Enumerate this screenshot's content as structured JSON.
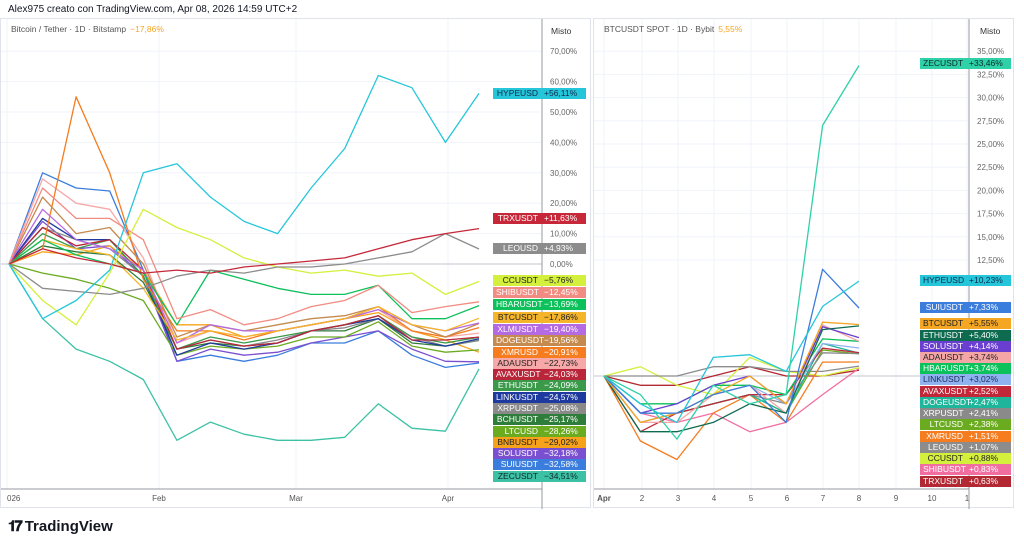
{
  "header": {
    "text": "Alex975 creato con TradingView.com, Apr 08, 2026 14:59 UTC+2"
  },
  "footer": {
    "logo": "TradingView"
  },
  "left": {
    "legend": {
      "symbol": "Bitcoin / Tether · 1D · Bitstamp",
      "change": "−17,86%",
      "change_color": "#f5a623"
    },
    "scale_label": "Misto",
    "y_ticks": [
      "70,00%",
      "60,00%",
      "50,00%",
      "40,00%",
      "30,00%",
      "20,00%",
      "10,00%",
      "0,00%"
    ],
    "x_ticks": [
      "026",
      "Feb",
      "Mar",
      "Apr"
    ]
  },
  "right": {
    "legend": {
      "symbol": "BTCUSDT SPOT · 1D · Bybit",
      "change": "5,55%",
      "change_color": "#f5a623"
    },
    "scale_label": "Misto",
    "y_ticks": [
      "35,00%",
      "32,50%",
      "30,00%",
      "27,50%",
      "25,00%",
      "22,50%",
      "20,00%",
      "17,50%",
      "15,00%",
      "12,50%"
    ],
    "x_ticks": [
      "Apr",
      "2",
      "3",
      "4",
      "5",
      "6",
      "7",
      "8",
      "9",
      "10",
      "1"
    ]
  },
  "chart_data": [
    {
      "type": "line",
      "title": "Bitcoin / Tether · 1D · Bitstamp",
      "ylabel": "Misto",
      "ylim": [
        -65,
        75
      ],
      "grid": true,
      "x": [
        "2026-01-01",
        "2026-01-08",
        "2026-01-15",
        "2026-01-22",
        "2026-01-29",
        "2026-02-05",
        "2026-02-12",
        "2026-02-19",
        "2026-02-26",
        "2026-03-05",
        "2026-03-12",
        "2026-03-19",
        "2026-03-26",
        "2026-04-02",
        "2026-04-08"
      ],
      "series": [
        {
          "name": "HYPEUSD",
          "label": "+56,11%",
          "color": "#26c6da",
          "text": "#0d2a4a",
          "values": [
            0,
            -18,
            -12,
            -2,
            30,
            33,
            22,
            14,
            10,
            25,
            38,
            62,
            58,
            40,
            56.11
          ]
        },
        {
          "name": "TRXUSDT",
          "label": "+11,63%",
          "color": "#c62839",
          "text": "#fff",
          "values": [
            0,
            5,
            2,
            0,
            -3,
            -2,
            -3,
            -1,
            0,
            1,
            2,
            5,
            8,
            10,
            11.63
          ]
        },
        {
          "name": "LEOUSD",
          "label": "+4,93%",
          "color": "#8c8c8c",
          "text": "#fff",
          "values": [
            0,
            -8,
            -9,
            -10,
            -8,
            -4,
            -2,
            -3,
            -1,
            -1,
            0,
            2,
            4,
            10,
            4.93
          ]
        },
        {
          "name": "CCUSDT",
          "label": "−5,76%",
          "color": "#d4f03c",
          "text": "#222",
          "values": [
            0,
            -12,
            -20,
            -3,
            18,
            12,
            8,
            2,
            -1,
            -3,
            -2,
            -4,
            -3,
            -10,
            -5.76
          ]
        },
        {
          "name": "SHIBUSDT",
          "label": "−12,45%",
          "color": "#f28b82",
          "text": "#fff",
          "values": [
            0,
            25,
            15,
            15,
            8,
            -18,
            -15,
            -20,
            -18,
            -14,
            -12,
            -7,
            -16,
            -14,
            -12.45
          ]
        },
        {
          "name": "HBARUSDT",
          "label": "−13,69%",
          "color": "#0cc05a",
          "text": "#fff",
          "values": [
            0,
            8,
            3,
            0,
            -3,
            -20,
            -2,
            -5,
            -8,
            -10,
            -10,
            -7,
            -18,
            -18,
            -13.69
          ]
        },
        {
          "name": "BTCUSDT",
          "label": "−17,86%",
          "color": "#f5b52a",
          "text": "#222",
          "values": [
            0,
            8,
            5,
            3,
            -8,
            -25,
            -22,
            -24,
            -22,
            -20,
            -18,
            -14,
            -20,
            -22,
            -17.86
          ]
        },
        {
          "name": "XLMUSDT",
          "label": "−19,40%",
          "color": "#b36ae2",
          "text": "#fff",
          "values": [
            0,
            18,
            8,
            5,
            -2,
            -26,
            -20,
            -22,
            -22,
            -20,
            -18,
            -15,
            -20,
            -22,
            -19.4
          ]
        },
        {
          "name": "DOGEUSDT",
          "label": "−19,56%",
          "color": "#c48a4e",
          "text": "#fff",
          "values": [
            0,
            22,
            10,
            12,
            0,
            -24,
            -20,
            -22,
            -20,
            -18,
            -17,
            -14,
            -20,
            -24,
            -19.56
          ]
        },
        {
          "name": "XMRUSD",
          "label": "−20,91%",
          "color": "#f57c1f",
          "text": "#fff",
          "values": [
            0,
            5,
            55,
            30,
            -5,
            -22,
            -22,
            -25,
            -22,
            -20,
            -18,
            -14,
            -22,
            -24,
            -20.91
          ]
        },
        {
          "name": "ADAUSDT",
          "label": "−22,73%",
          "color": "#f7a8a8",
          "text": "#222",
          "values": [
            0,
            28,
            20,
            18,
            2,
            -26,
            -22,
            -24,
            -22,
            -20,
            -18,
            -15,
            -22,
            -24,
            -22.73
          ]
        },
        {
          "name": "AVAXUSDT",
          "label": "−24,03%",
          "color": "#b9263a",
          "text": "#fff",
          "values": [
            0,
            12,
            6,
            8,
            -2,
            -28,
            -25,
            -27,
            -26,
            -22,
            -20,
            -17,
            -25,
            -25,
            -24.03
          ]
        },
        {
          "name": "ETHUSDT",
          "label": "−24,09%",
          "color": "#3a9a4a",
          "text": "#fff",
          "values": [
            0,
            10,
            5,
            8,
            -4,
            -28,
            -24,
            -26,
            -24,
            -22,
            -20,
            -17,
            -24,
            -26,
            -24.09
          ]
        },
        {
          "name": "LINKUSDT",
          "label": "−24,57%",
          "color": "#1e3a9e",
          "text": "#fff",
          "values": [
            0,
            15,
            8,
            8,
            -4,
            -30,
            -26,
            -28,
            -26,
            -22,
            -20,
            -18,
            -25,
            -27,
            -24.57
          ]
        },
        {
          "name": "XRPUSDT",
          "label": "−25,08%",
          "color": "#8a8a8a",
          "text": "#fff",
          "values": [
            0,
            12,
            8,
            5,
            -4,
            -28,
            -25,
            -27,
            -25,
            -22,
            -21,
            -18,
            -24,
            -27,
            -25.08
          ]
        },
        {
          "name": "BCHUSDT",
          "label": "−25,17%",
          "color": "#2f7d3a",
          "text": "#fff",
          "values": [
            0,
            6,
            4,
            3,
            -6,
            -28,
            -26,
            -27,
            -26,
            -22,
            -22,
            -18,
            -26,
            -27,
            -25.17
          ]
        },
        {
          "name": "LTCUSD",
          "label": "−28,26%",
          "color": "#6bab1f",
          "text": "#fff",
          "values": [
            0,
            -3,
            -5,
            -8,
            -12,
            -30,
            -27,
            -28,
            -27,
            -24,
            -24,
            -19,
            -27,
            -29,
            -28.26
          ]
        },
        {
          "name": "BNBUSDT",
          "label": "−29,02%",
          "color": "#f7a21b",
          "text": "#222",
          "values": [
            0,
            4,
            3,
            6,
            -2,
            -20,
            -20,
            -24,
            -22,
            -20,
            -18,
            -16,
            -22,
            -25,
            -29.02
          ]
        },
        {
          "name": "SOLUSDT",
          "label": "−32,18%",
          "color": "#7a4fd0",
          "text": "#fff",
          "values": [
            0,
            14,
            5,
            6,
            -4,
            -32,
            -28,
            -30,
            -29,
            -26,
            -24,
            -22,
            -28,
            -32,
            -32.18
          ]
        },
        {
          "name": "SUIUSDT",
          "label": "−32,58%",
          "color": "#3b7ddd",
          "text": "#fff",
          "values": [
            0,
            30,
            25,
            24,
            -2,
            -32,
            -30,
            -32,
            -30,
            -26,
            -26,
            -22,
            -30,
            -34,
            -32.58
          ]
        },
        {
          "name": "ZECUSDT",
          "label": "−34,51%",
          "color": "#3cc1a4",
          "text": "#0d2a2a",
          "values": [
            0,
            -18,
            -28,
            -32,
            -38,
            -58,
            -52,
            -56,
            -58,
            -58,
            -57,
            -46,
            -54,
            -55,
            -34.51
          ]
        }
      ]
    },
    {
      "type": "line",
      "title": "BTCUSDT SPOT · 1D · Bybit",
      "ylabel": "Misto",
      "ylim": [
        -12,
        37.5
      ],
      "grid": true,
      "x": [
        "Apr 1",
        "Apr 2",
        "Apr 3",
        "Apr 4",
        "Apr 5",
        "Apr 6",
        "Apr 7",
        "Apr 8"
      ],
      "series": [
        {
          "name": "ZECUSDT",
          "label": "+33,46%",
          "color": "#2fd1a8",
          "text": "#0d2a2a",
          "values": [
            0,
            -2,
            -6.8,
            -1,
            -3,
            -2,
            27,
            33.46
          ]
        },
        {
          "name": "HYPEUSD",
          "label": "+10,23%",
          "color": "#26c6da",
          "text": "#0d2a4a",
          "values": [
            0,
            -3,
            -5,
            2,
            2.3,
            0.5,
            7.5,
            10.23
          ]
        },
        {
          "name": "SUIUSDT",
          "label": "+7,33%",
          "color": "#3b7ddd",
          "text": "#fff",
          "values": [
            0,
            -4,
            -4,
            -2,
            -1,
            -5,
            11.5,
            7.33
          ]
        },
        {
          "name": "BTCUSDT",
          "label": "+5,55%",
          "color": "#f5a623",
          "text": "#222",
          "values": [
            0,
            -5,
            -4,
            -2,
            0,
            -3,
            5.8,
            5.55
          ]
        },
        {
          "name": "ETHUSDT",
          "label": "+5,40%",
          "color": "#0f6b4f",
          "text": "#fff",
          "values": [
            0,
            -6,
            -6,
            -5,
            -3,
            -4,
            5,
            5.4
          ]
        },
        {
          "name": "SOLUSDT",
          "label": "+4,14%",
          "color": "#6a3fd0",
          "text": "#fff",
          "values": [
            0,
            -4,
            -3,
            -1,
            0,
            -3,
            5.3,
            4.14
          ]
        },
        {
          "name": "ADAUSDT",
          "label": "+3,74%",
          "color": "#f4a6a6",
          "text": "#222",
          "values": [
            0,
            -5,
            -5,
            -2,
            -1,
            -4,
            5.5,
            3.74
          ]
        },
        {
          "name": "HBARUSDT",
          "label": "+3,74%",
          "color": "#0cc05a",
          "text": "#fff",
          "values": [
            0,
            -3,
            -3,
            -1,
            -1,
            -2,
            4,
            3.74
          ]
        },
        {
          "name": "LINKUSDT",
          "label": "+3,02%",
          "color": "#8fb3f0",
          "text": "#1e2a5a",
          "values": [
            0,
            -4,
            -4,
            -2,
            -1,
            -3,
            3.5,
            3.02
          ]
        },
        {
          "name": "AVAXUSDT",
          "label": "+2,52%",
          "color": "#c0283a",
          "text": "#fff",
          "values": [
            0,
            -6,
            -4,
            -3,
            -2,
            -2,
            3,
            2.52
          ]
        },
        {
          "name": "DOGEUSDT",
          "label": "+2,47%",
          "color": "#1fb59a",
          "text": "#fff",
          "values": [
            0,
            -5,
            -4,
            -3,
            -2,
            -4,
            3.5,
            2.47
          ]
        },
        {
          "name": "XRPUSDT",
          "label": "+2,41%",
          "color": "#8a8a8a",
          "text": "#fff",
          "values": [
            0,
            -4,
            -4,
            -3,
            -2,
            -3,
            2.5,
            2.41
          ]
        },
        {
          "name": "LTCUSD",
          "label": "+2,38%",
          "color": "#6bab1f",
          "text": "#fff",
          "values": [
            0,
            -4,
            -4,
            -3,
            -2,
            -4,
            2.8,
            2.38
          ]
        },
        {
          "name": "XMRUSD",
          "label": "+1,51%",
          "color": "#f57c1f",
          "text": "#fff",
          "values": [
            0,
            -7,
            -9,
            -4,
            -2,
            -5,
            1.5,
            1.51
          ]
        },
        {
          "name": "LEOUSD",
          "label": "+1,07%",
          "color": "#8c8c8c",
          "text": "#fff",
          "values": [
            0,
            0,
            0,
            1,
            1,
            0.5,
            0.5,
            1.07
          ]
        },
        {
          "name": "CCUSDT",
          "label": "+0,88%",
          "color": "#d4f03c",
          "text": "#222",
          "values": [
            0,
            1,
            -1,
            -2,
            2,
            0.5,
            0,
            0.88
          ]
        },
        {
          "name": "SHIBUSDT",
          "label": "+0,83%",
          "color": "#f06fa0",
          "text": "#fff",
          "values": [
            0,
            -4,
            -5,
            -4,
            -6,
            -5,
            -2,
            0.83
          ]
        },
        {
          "name": "TRXUSDT",
          "label": "+0,63%",
          "color": "#b22833",
          "text": "#fff",
          "values": [
            0,
            -1,
            -1,
            0,
            1,
            0,
            0,
            0.63
          ]
        }
      ]
    }
  ]
}
